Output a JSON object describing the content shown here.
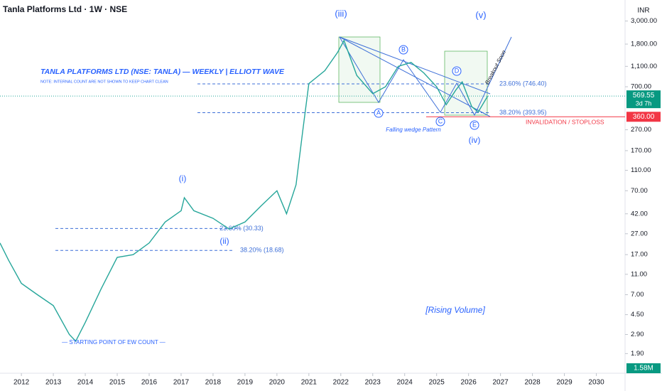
{
  "header": {
    "symbol": "Tanla Platforms Ltd · 1W · NSE",
    "currency": "INR"
  },
  "chart_data": {
    "type": "line",
    "log_scale": true,
    "color": "#26a69a",
    "x": [
      2011.33,
      2011.6,
      2012.0,
      2012.5,
      2013.0,
      2013.5,
      2013.7,
      2014.0,
      2014.5,
      2015.0,
      2015.5,
      2016.0,
      2016.5,
      2017.0,
      2017.1,
      2017.4,
      2018.0,
      2018.5,
      2019.0,
      2019.5,
      2020.0,
      2020.3,
      2020.6,
      2020.8,
      2021.0,
      2021.5,
      2021.9,
      2022.1,
      2022.5,
      2023.0,
      2023.4,
      2023.8,
      2024.2,
      2024.6,
      2025.0,
      2025.3,
      2025.6,
      2025.8,
      2026.1,
      2026.3,
      2026.6
    ],
    "series": [
      {
        "name": "TANLA",
        "values": [
          22,
          15,
          9,
          7,
          5.5,
          2.9,
          2.5,
          3.8,
          8,
          16,
          17,
          22,
          35,
          45,
          60,
          45,
          38,
          30,
          35,
          50,
          70,
          42,
          80,
          250,
          750,
          1000,
          1500,
          1950,
          900,
          600,
          700,
          1100,
          1200,
          950,
          700,
          470,
          650,
          780,
          450,
          400,
          570
        ]
      }
    ],
    "xlim": [
      2011.33,
      2030.9
    ],
    "xticks": [
      2012,
      2013,
      2014,
      2015,
      2016,
      2017,
      2018,
      2019,
      2020,
      2021,
      2022,
      2023,
      2024,
      2025,
      2026,
      2027,
      2028,
      2029,
      2030
    ],
    "ylim": [
      1.23,
      4780
    ],
    "yticks": [
      {
        "value": 3000,
        "label": "3,000.00"
      },
      {
        "value": 1800,
        "label": "1,800.00"
      },
      {
        "value": 1100,
        "label": "1,100.00"
      },
      {
        "value": 700,
        "label": "700.00"
      },
      {
        "value": 270,
        "label": "270.00"
      },
      {
        "value": 170,
        "label": "170.00"
      },
      {
        "value": 110,
        "label": "110.00"
      },
      {
        "value": 70,
        "label": "70.00"
      },
      {
        "value": 42,
        "label": "42.00"
      },
      {
        "value": 27,
        "label": "27.00"
      },
      {
        "value": 17,
        "label": "17.00"
      },
      {
        "value": 11,
        "label": "11.00"
      },
      {
        "value": 7,
        "label": "7.00"
      },
      {
        "value": 4.5,
        "label": "4.50"
      },
      {
        "value": 2.9,
        "label": "2.90"
      },
      {
        "value": 1.9,
        "label": "1.90"
      }
    ],
    "last_price": {
      "value": 569.55,
      "label": "569.55",
      "countdown": "3d 7h"
    },
    "stoploss": {
      "value": 360,
      "label": "360.00",
      "text": "INVALIDATION / STOPLOSS"
    },
    "volume_label": "1.58M",
    "fib_levels": [
      {
        "value": 746.4,
        "label": "23.60% (746.40)"
      },
      {
        "value": 393.95,
        "label": "38.20% (393.95)"
      },
      {
        "value": 30.33,
        "label": "23.60% (30.33)"
      },
      {
        "value": 18.68,
        "label": "38.20% (18.68)"
      }
    ],
    "annotations": [
      "(iii)",
      "(v)",
      "(i)",
      "(ii)",
      "(iv)",
      "A",
      "B",
      "C",
      "D",
      "E",
      "TANLA PLATFORMS LTD (NSE: TANLA) — WEEKLY | ELLIOTT WAVE",
      "NOTE: INTERNAL COUNT ARE NOT SHOWN TO KEEP CHART CLEAN",
      "Falling wedge Pattern",
      "Breakout Soon",
      "[Rising Volume]",
      "— STARTING POINT OF EW COUNT —"
    ]
  }
}
